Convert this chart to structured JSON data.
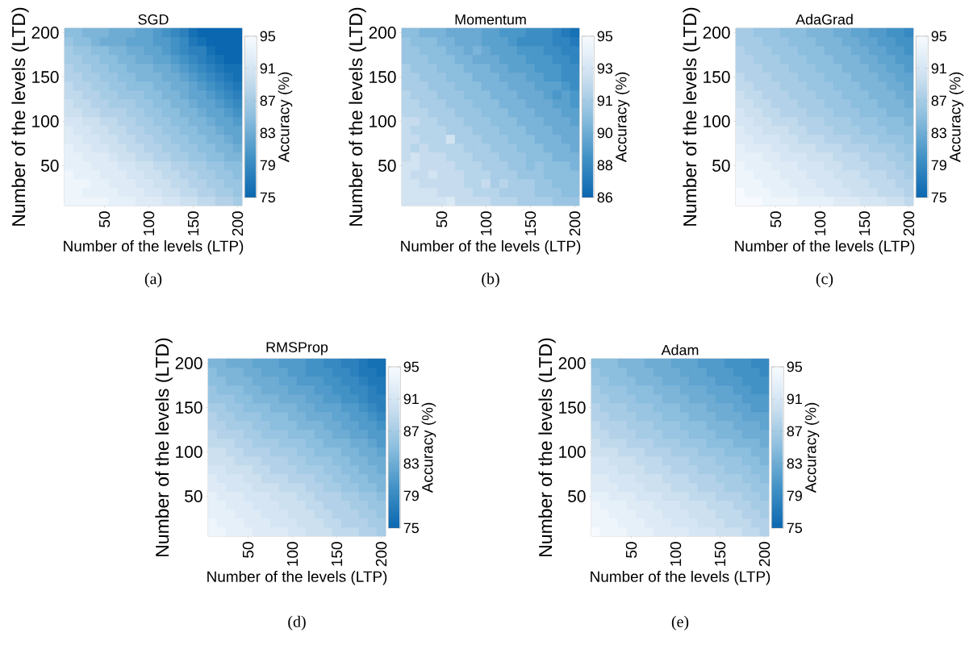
{
  "chart_data": [
    {
      "type": "heatmap",
      "title": "SGD",
      "xlabel": "Number of the levels (LTP)",
      "ylabel": "Number of the levels (LTD)",
      "clabel": "Accuracy (%)",
      "annotations": [
        "(a)"
      ],
      "x": [
        10,
        20,
        30,
        40,
        50,
        60,
        70,
        80,
        90,
        100,
        110,
        120,
        130,
        140,
        150,
        160,
        170,
        180,
        190,
        200
      ],
      "y": [
        200,
        190,
        180,
        170,
        160,
        150,
        140,
        130,
        120,
        110,
        100,
        90,
        80,
        70,
        60,
        50,
        40,
        30,
        20,
        10
      ],
      "xlim": [
        5,
        205
      ],
      "ylim": [
        5,
        205
      ],
      "xticks": [
        50,
        100,
        150,
        200
      ],
      "yticks": [
        50,
        100,
        150,
        200
      ],
      "clim": [
        75,
        95
      ],
      "cticks": [
        75,
        79,
        83,
        87,
        91,
        95
      ],
      "cells": [
        [
          85,
          85,
          84,
          84,
          84,
          83,
          83,
          83,
          82,
          82,
          81,
          80,
          79,
          78,
          76,
          75,
          75,
          75,
          75,
          75
        ],
        [
          86,
          85,
          85,
          84,
          83,
          83,
          83,
          82,
          82,
          82,
          81,
          81,
          80,
          79,
          77,
          76,
          75,
          75,
          75,
          75
        ],
        [
          87,
          86,
          86,
          85,
          85,
          84,
          84,
          83,
          83,
          82,
          82,
          81,
          80,
          79,
          78,
          78,
          76,
          75,
          75,
          75
        ],
        [
          87,
          87,
          86,
          86,
          85,
          85,
          84,
          84,
          83,
          83,
          82,
          82,
          81,
          80,
          79,
          78,
          77,
          76,
          75,
          75
        ],
        [
          88,
          87,
          87,
          86,
          86,
          85,
          85,
          84,
          84,
          84,
          83,
          83,
          82,
          81,
          80,
          79,
          78,
          77,
          76,
          76
        ],
        [
          88,
          88,
          87,
          87,
          86,
          86,
          85,
          85,
          84,
          84,
          84,
          83,
          83,
          82,
          81,
          80,
          79,
          78,
          77,
          76
        ],
        [
          89,
          88,
          88,
          87,
          87,
          86,
          86,
          85,
          85,
          85,
          84,
          84,
          83,
          83,
          82,
          81,
          80,
          79,
          78,
          77
        ],
        [
          89,
          89,
          88,
          88,
          87,
          87,
          86,
          86,
          86,
          85,
          85,
          84,
          84,
          83,
          82,
          82,
          81,
          80,
          79,
          78
        ],
        [
          90,
          89,
          89,
          88,
          88,
          87,
          87,
          87,
          86,
          86,
          85,
          85,
          84,
          84,
          83,
          82,
          82,
          81,
          80,
          79
        ],
        [
          90,
          90,
          89,
          89,
          88,
          88,
          88,
          87,
          87,
          86,
          86,
          85,
          85,
          84,
          84,
          83,
          82,
          82,
          81,
          80
        ],
        [
          91,
          91,
          90,
          90,
          89,
          89,
          88,
          88,
          87,
          87,
          86,
          86,
          85,
          85,
          84,
          84,
          83,
          82,
          82,
          81
        ],
        [
          92,
          91,
          91,
          90,
          90,
          89,
          89,
          88,
          88,
          87,
          87,
          86,
          86,
          85,
          85,
          84,
          84,
          83,
          82,
          82
        ],
        [
          92,
          92,
          91,
          91,
          90,
          90,
          89,
          89,
          88,
          88,
          87,
          87,
          86,
          86,
          85,
          85,
          84,
          84,
          83,
          82
        ],
        [
          93,
          92,
          92,
          91,
          91,
          90,
          90,
          89,
          89,
          88,
          88,
          87,
          87,
          86,
          86,
          85,
          85,
          84,
          84,
          83
        ],
        [
          93,
          93,
          92,
          92,
          92,
          91,
          90,
          90,
          89,
          89,
          88,
          88,
          87,
          87,
          86,
          86,
          85,
          85,
          84,
          84
        ],
        [
          93,
          93,
          93,
          92,
          92,
          92,
          91,
          91,
          90,
          90,
          89,
          89,
          88,
          88,
          87,
          87,
          86,
          86,
          85,
          85
        ],
        [
          94,
          93,
          93,
          93,
          92,
          92,
          92,
          91,
          91,
          90,
          90,
          89,
          89,
          88,
          88,
          87,
          87,
          86,
          86,
          85
        ],
        [
          94,
          94,
          94,
          93,
          93,
          92,
          92,
          92,
          91,
          91,
          90,
          90,
          89,
          89,
          88,
          88,
          87,
          87,
          86,
          86
        ],
        [
          94,
          94,
          93,
          93,
          93,
          93,
          92,
          92,
          92,
          91,
          91,
          90,
          90,
          89,
          89,
          88,
          88,
          87,
          87,
          86
        ],
        [
          94,
          94,
          94,
          94,
          94,
          93,
          93,
          93,
          92,
          92,
          92,
          91,
          91,
          90,
          90,
          89,
          89,
          88,
          88,
          87
        ]
      ]
    },
    {
      "type": "heatmap",
      "title": "Momentum",
      "xlabel": "Number of the levels (LTP)",
      "ylabel": "Number of the levels (LTD)",
      "clabel": "Accuracy (%)",
      "annotations": [
        "(b)"
      ],
      "x": [
        10,
        20,
        30,
        40,
        50,
        60,
        70,
        80,
        90,
        100,
        110,
        120,
        130,
        140,
        150,
        160,
        170,
        180,
        190,
        200
      ],
      "y": [
        200,
        190,
        180,
        170,
        160,
        150,
        140,
        130,
        120,
        110,
        100,
        90,
        80,
        70,
        60,
        50,
        40,
        30,
        20,
        10
      ],
      "xlim": [
        5,
        205
      ],
      "ylim": [
        5,
        205
      ],
      "xticks": [
        50,
        100,
        150,
        200
      ],
      "yticks": [
        50,
        100,
        150,
        200
      ],
      "clim": [
        86,
        95
      ],
      "cticks": [
        86,
        {
          "value": 87.8,
          "label": "88"
        },
        {
          "value": 89.6,
          "label": "90"
        },
        {
          "value": 91.4,
          "label": "91"
        },
        {
          "value": 93.2,
          "label": "93"
        },
        95
      ],
      "cells": [
        [
          90.5,
          90.5,
          90,
          90,
          90,
          89.5,
          89.5,
          89.5,
          89.5,
          89,
          89,
          88.5,
          88.5,
          88.5,
          88,
          88,
          88,
          87.5,
          87,
          86.5
        ],
        [
          91,
          90.5,
          90.5,
          90.5,
          90,
          90,
          89.5,
          89.5,
          89.5,
          89,
          89,
          89,
          88.5,
          88,
          88,
          88,
          88,
          87.5,
          87.5,
          87
        ],
        [
          91,
          91,
          90.5,
          90.5,
          90.5,
          90,
          90,
          89.5,
          90,
          89.5,
          89,
          89,
          89,
          88.5,
          88.5,
          88.5,
          88,
          88,
          87.5,
          87.5
        ],
        [
          91,
          91,
          91,
          90.5,
          90.5,
          90.5,
          90,
          90,
          89.5,
          89.5,
          89.5,
          89,
          89,
          89,
          88.5,
          88.5,
          88.5,
          88,
          88,
          87.5
        ],
        [
          91.5,
          91,
          91,
          91,
          90.5,
          90.5,
          90.5,
          90,
          90,
          90,
          89.5,
          89.5,
          89,
          89,
          89,
          88.5,
          88.5,
          88.5,
          88,
          88
        ],
        [
          91.5,
          91.5,
          91,
          91,
          91,
          90.5,
          90.5,
          90.5,
          90,
          90,
          90,
          89.5,
          89.5,
          89.5,
          89,
          89,
          88.5,
          88.5,
          88,
          88
        ],
        [
          91.5,
          91.5,
          91.5,
          91,
          91,
          91,
          90.5,
          90.5,
          90.5,
          90,
          90,
          90,
          89.5,
          89.5,
          89.5,
          89,
          89,
          89,
          88.5,
          88
        ],
        [
          92,
          91.5,
          91.5,
          91.5,
          91,
          91,
          91,
          90.5,
          90.5,
          90.5,
          90,
          90,
          90,
          89.5,
          89.5,
          89.5,
          89,
          88.5,
          89,
          88.5
        ],
        [
          92,
          92,
          91.5,
          91.5,
          91.5,
          91,
          91,
          91,
          90.5,
          90.5,
          90.5,
          90,
          90,
          90,
          89.5,
          89.5,
          89.5,
          89,
          89,
          88.5
        ],
        [
          92,
          92,
          92,
          91.5,
          91.5,
          91.5,
          91,
          91,
          91,
          90.5,
          90.5,
          90.5,
          90,
          90,
          90,
          89.5,
          89.5,
          89.5,
          89,
          89
        ],
        [
          92.5,
          92.5,
          92,
          92,
          91.5,
          91.5,
          91.5,
          91,
          91,
          91,
          90.5,
          90.5,
          90.5,
          90,
          90,
          90,
          89.5,
          89.5,
          89.5,
          89
        ],
        [
          92.5,
          92,
          92,
          92,
          92,
          91.5,
          91.5,
          91.5,
          91,
          91,
          91,
          90.5,
          90.5,
          90.5,
          90,
          90,
          90,
          89.5,
          89.5,
          89.5
        ],
        [
          92.5,
          92.5,
          92,
          92,
          92,
          93,
          91.5,
          91.5,
          91.5,
          91,
          91,
          91,
          90.5,
          90.5,
          90.5,
          90,
          90,
          90,
          89.5,
          89.5
        ],
        [
          92.5,
          92,
          92.5,
          92,
          92,
          92,
          92,
          91.5,
          91.5,
          91.5,
          91,
          91,
          91,
          90.5,
          90.5,
          90.5,
          90,
          90,
          90,
          89.5
        ],
        [
          92.5,
          93,
          92.5,
          92.5,
          92.5,
          92,
          92,
          92,
          91.5,
          91.5,
          91.5,
          91,
          91,
          91,
          90.5,
          90.5,
          90.5,
          90,
          90,
          90
        ],
        [
          93,
          93,
          92.5,
          92.5,
          92.5,
          92.5,
          92,
          92,
          92,
          91.5,
          91.5,
          91.5,
          91,
          91,
          90.5,
          91,
          90.5,
          90.5,
          90.5,
          90
        ],
        [
          93,
          92.5,
          92.5,
          93,
          92.5,
          92.5,
          92.5,
          92,
          92,
          92,
          91.5,
          91.5,
          91.5,
          91,
          91,
          91,
          90.5,
          90.5,
          90.5,
          90.5
        ],
        [
          93,
          93,
          92.5,
          92.5,
          92.5,
          92.5,
          92.5,
          92,
          92,
          92.5,
          91.5,
          92,
          91.5,
          91.5,
          91.5,
          91,
          91,
          90.5,
          90.5,
          90.5
        ],
        [
          93,
          93,
          93,
          93,
          92.5,
          92.5,
          92.5,
          92.5,
          92,
          92,
          92,
          91.5,
          91.5,
          91.5,
          91.5,
          91,
          91,
          91,
          90.5,
          90.5
        ],
        [
          93,
          93,
          93,
          93,
          93,
          93.5,
          92.5,
          92.5,
          92.5,
          92.5,
          92,
          92,
          92,
          91.5,
          91.5,
          91.5,
          91.5,
          91,
          91,
          91
        ]
      ]
    },
    {
      "type": "heatmap",
      "title": "AdaGrad",
      "xlabel": "Number of the levels (LTP)",
      "ylabel": "Number of the levels (LTD)",
      "clabel": "Accuracy (%)",
      "annotations": [
        "(c)"
      ],
      "x": [
        10,
        20,
        30,
        40,
        50,
        60,
        70,
        80,
        90,
        100,
        110,
        120,
        130,
        140,
        150,
        160,
        170,
        180,
        190,
        200
      ],
      "y": [
        200,
        190,
        180,
        170,
        160,
        150,
        140,
        130,
        120,
        110,
        100,
        90,
        80,
        70,
        60,
        50,
        40,
        30,
        20,
        10
      ],
      "xlim": [
        5,
        205
      ],
      "ylim": [
        5,
        205
      ],
      "xticks": [
        50,
        100,
        150,
        200
      ],
      "yticks": [
        50,
        100,
        150,
        200
      ],
      "clim": [
        75,
        95
      ],
      "cticks": [
        75,
        79,
        83,
        87,
        91,
        95
      ],
      "cells": [
        [
          87,
          87,
          86,
          86,
          86,
          85,
          85,
          85,
          84,
          84,
          84,
          83,
          83,
          82,
          82,
          81,
          81,
          80,
          80,
          79
        ],
        [
          87,
          87,
          87,
          86,
          86,
          86,
          85,
          85,
          85,
          84,
          84,
          84,
          83,
          83,
          82,
          82,
          81,
          81,
          80,
          80
        ],
        [
          88,
          87,
          87,
          87,
          86,
          86,
          86,
          85,
          85,
          85,
          84,
          84,
          84,
          83,
          83,
          82,
          82,
          81,
          81,
          80
        ],
        [
          88,
          88,
          87,
          87,
          87,
          86,
          86,
          86,
          85,
          85,
          85,
          84,
          84,
          84,
          83,
          83,
          82,
          82,
          81,
          81
        ],
        [
          88,
          88,
          88,
          87,
          87,
          87,
          86,
          86,
          86,
          85,
          85,
          85,
          84,
          84,
          84,
          83,
          83,
          82,
          82,
          81
        ],
        [
          89,
          88,
          88,
          88,
          87,
          87,
          87,
          86,
          86,
          86,
          85,
          85,
          85,
          84,
          84,
          84,
          83,
          83,
          82,
          82
        ],
        [
          89,
          89,
          88,
          88,
          88,
          87,
          87,
          87,
          86,
          86,
          86,
          85,
          85,
          85,
          84,
          84,
          84,
          83,
          83,
          82
        ],
        [
          90,
          89,
          89,
          88,
          88,
          88,
          87,
          87,
          87,
          86,
          86,
          86,
          85,
          85,
          85,
          84,
          84,
          84,
          83,
          83
        ],
        [
          90,
          90,
          89,
          89,
          88,
          88,
          88,
          87,
          87,
          87,
          86,
          86,
          86,
          85,
          85,
          85,
          84,
          84,
          84,
          83
        ],
        [
          91,
          90,
          90,
          89,
          89,
          88,
          88,
          88,
          87,
          87,
          87,
          86,
          86,
          86,
          85,
          85,
          85,
          84,
          84,
          84
        ],
        [
          91,
          91,
          90,
          90,
          89,
          89,
          89,
          88,
          88,
          88,
          87,
          87,
          87,
          86,
          86,
          86,
          85,
          85,
          85,
          84
        ],
        [
          92,
          91,
          91,
          90,
          90,
          90,
          89,
          89,
          88,
          88,
          88,
          87,
          87,
          87,
          86,
          86,
          86,
          85,
          85,
          85
        ],
        [
          92,
          92,
          91,
          91,
          91,
          90,
          90,
          89,
          89,
          89,
          88,
          88,
          88,
          87,
          87,
          87,
          86,
          86,
          86,
          85
        ],
        [
          93,
          92,
          92,
          92,
          91,
          91,
          90,
          90,
          90,
          89,
          89,
          89,
          88,
          88,
          88,
          87,
          87,
          87,
          86,
          86
        ],
        [
          93,
          93,
          93,
          92,
          92,
          91,
          91,
          91,
          90,
          90,
          90,
          89,
          89,
          89,
          88,
          88,
          88,
          87,
          87,
          86
        ],
        [
          94,
          93,
          93,
          93,
          92,
          92,
          92,
          91,
          91,
          91,
          90,
          90,
          89,
          89,
          89,
          88,
          88,
          88,
          87,
          87
        ],
        [
          94,
          94,
          93,
          93,
          93,
          92,
          92,
          92,
          91,
          91,
          91,
          90,
          90,
          90,
          89,
          89,
          89,
          88,
          88,
          87
        ],
        [
          94,
          94,
          94,
          93,
          93,
          93,
          92,
          92,
          92,
          91,
          91,
          91,
          90,
          90,
          90,
          89,
          89,
          89,
          88,
          88
        ],
        [
          95,
          94,
          94,
          94,
          93,
          93,
          93,
          92,
          92,
          92,
          91,
          91,
          91,
          90,
          90,
          90,
          89,
          89,
          89,
          88
        ],
        [
          95,
          95,
          95,
          94,
          94,
          94,
          94,
          93,
          93,
          93,
          93,
          92,
          92,
          92,
          91,
          91,
          91,
          90,
          90,
          89
        ]
      ]
    },
    {
      "type": "heatmap",
      "title": "RMSProp",
      "xlabel": "Number of the levels (LTP)",
      "ylabel": "Number of the levels (LTD)",
      "clabel": "Accuracy (%)",
      "annotations": [
        "(d)"
      ],
      "x": [
        10,
        20,
        30,
        40,
        50,
        60,
        70,
        80,
        90,
        100,
        110,
        120,
        130,
        140,
        150,
        160,
        170,
        180,
        190,
        200
      ],
      "y": [
        200,
        190,
        180,
        170,
        160,
        150,
        140,
        130,
        120,
        110,
        100,
        90,
        80,
        70,
        60,
        50,
        40,
        30,
        20,
        10
      ],
      "xlim": [
        5,
        205
      ],
      "ylim": [
        5,
        205
      ],
      "xticks": [
        50,
        100,
        150,
        200
      ],
      "yticks": [
        50,
        100,
        150,
        200
      ],
      "clim": [
        75,
        95
      ],
      "cticks": [
        75,
        79,
        83,
        87,
        91,
        95
      ],
      "cells": [
        [
          84,
          84,
          83,
          83,
          83,
          82,
          82,
          82,
          81,
          81,
          81,
          80,
          80,
          79,
          79,
          78,
          78,
          77,
          76,
          76
        ],
        [
          85,
          84,
          84,
          84,
          83,
          83,
          82,
          82,
          82,
          81,
          81,
          80,
          80,
          80,
          79,
          79,
          78,
          77,
          77,
          76
        ],
        [
          85,
          85,
          84,
          84,
          84,
          83,
          83,
          83,
          82,
          82,
          81,
          81,
          81,
          80,
          80,
          79,
          79,
          78,
          77,
          77
        ],
        [
          86,
          85,
          85,
          85,
          84,
          84,
          83,
          83,
          83,
          82,
          82,
          82,
          81,
          81,
          80,
          80,
          79,
          79,
          78,
          77
        ],
        [
          86,
          86,
          86,
          85,
          85,
          84,
          84,
          84,
          83,
          83,
          83,
          82,
          82,
          81,
          81,
          80,
          80,
          79,
          78,
          78
        ],
        [
          87,
          87,
          86,
          86,
          85,
          85,
          85,
          84,
          84,
          84,
          83,
          83,
          82,
          82,
          82,
          81,
          81,
          80,
          79,
          78
        ],
        [
          88,
          87,
          87,
          86,
          86,
          86,
          85,
          85,
          85,
          84,
          84,
          83,
          83,
          83,
          82,
          82,
          81,
          81,
          80,
          79
        ],
        [
          88,
          88,
          87,
          87,
          87,
          86,
          86,
          85,
          85,
          85,
          84,
          84,
          84,
          83,
          83,
          82,
          82,
          81,
          81,
          80
        ],
        [
          89,
          88,
          88,
          88,
          87,
          87,
          86,
          86,
          86,
          85,
          85,
          85,
          84,
          84,
          83,
          83,
          82,
          82,
          81,
          81
        ],
        [
          89,
          89,
          89,
          88,
          88,
          87,
          87,
          87,
          86,
          86,
          86,
          85,
          85,
          84,
          84,
          84,
          83,
          83,
          82,
          81
        ],
        [
          90,
          90,
          89,
          89,
          88,
          88,
          88,
          87,
          87,
          87,
          86,
          86,
          85,
          85,
          85,
          84,
          84,
          83,
          83,
          82
        ],
        [
          90,
          90,
          90,
          89,
          89,
          89,
          88,
          88,
          88,
          87,
          87,
          86,
          86,
          86,
          85,
          85,
          84,
          84,
          83,
          83
        ],
        [
          91,
          91,
          90,
          90,
          90,
          89,
          89,
          88,
          88,
          88,
          87,
          87,
          87,
          86,
          86,
          85,
          85,
          84,
          84,
          83
        ],
        [
          92,
          91,
          91,
          91,
          90,
          90,
          89,
          89,
          89,
          88,
          88,
          88,
          87,
          87,
          86,
          86,
          85,
          85,
          84,
          84
        ],
        [
          92,
          92,
          91,
          91,
          91,
          90,
          90,
          90,
          89,
          89,
          89,
          88,
          88,
          87,
          87,
          86,
          86,
          85,
          85,
          84
        ],
        [
          93,
          92,
          92,
          92,
          91,
          91,
          91,
          90,
          90,
          90,
          89,
          89,
          88,
          88,
          88,
          87,
          87,
          86,
          86,
          85
        ],
        [
          93,
          93,
          92,
          92,
          92,
          91,
          91,
          91,
          90,
          90,
          90,
          89,
          89,
          88,
          88,
          88,
          87,
          87,
          86,
          86
        ],
        [
          93,
          93,
          93,
          92,
          92,
          92,
          91,
          91,
          91,
          90,
          90,
          90,
          89,
          89,
          88,
          88,
          88,
          87,
          87,
          86
        ],
        [
          94,
          93,
          93,
          93,
          92,
          92,
          92,
          91,
          91,
          91,
          90,
          90,
          90,
          89,
          89,
          88,
          88,
          88,
          87,
          87
        ],
        [
          94,
          94,
          93,
          93,
          93,
          92,
          92,
          92,
          92,
          91,
          91,
          90,
          90,
          90,
          89,
          89,
          89,
          88,
          88,
          87
        ]
      ]
    },
    {
      "type": "heatmap",
      "title": "Adam",
      "xlabel": "Number of the levels (LTP)",
      "ylabel": "Number of the levels (LTD)",
      "clabel": "Accuracy (%)",
      "annotations": [
        "(e)"
      ],
      "x": [
        10,
        20,
        30,
        40,
        50,
        60,
        70,
        80,
        90,
        100,
        110,
        120,
        130,
        140,
        150,
        160,
        170,
        180,
        190,
        200
      ],
      "y": [
        200,
        190,
        180,
        170,
        160,
        150,
        140,
        130,
        120,
        110,
        100,
        90,
        80,
        70,
        60,
        50,
        40,
        30,
        20,
        10
      ],
      "xlim": [
        5,
        205
      ],
      "ylim": [
        5,
        205
      ],
      "xticks": [
        50,
        100,
        150,
        200
      ],
      "yticks": [
        50,
        100,
        150,
        200
      ],
      "clim": [
        75,
        95
      ],
      "cticks": [
        75,
        79,
        83,
        87,
        91,
        95
      ],
      "cells": [
        [
          85,
          85,
          85,
          84,
          84,
          84,
          83,
          83,
          83,
          82,
          82,
          82,
          81,
          81,
          81,
          80,
          80,
          80,
          79,
          79
        ],
        [
          86,
          85,
          85,
          85,
          84,
          84,
          84,
          83,
          83,
          83,
          82,
          82,
          82,
          81,
          81,
          81,
          80,
          80,
          80,
          79
        ],
        [
          86,
          86,
          85,
          85,
          85,
          84,
          84,
          84,
          83,
          83,
          83,
          82,
          82,
          82,
          81,
          81,
          81,
          80,
          80,
          80
        ],
        [
          87,
          86,
          86,
          86,
          85,
          85,
          85,
          84,
          84,
          84,
          83,
          83,
          83,
          82,
          82,
          82,
          81,
          81,
          80,
          80
        ],
        [
          87,
          87,
          86,
          86,
          86,
          85,
          85,
          85,
          84,
          84,
          84,
          83,
          83,
          83,
          82,
          82,
          82,
          81,
          81,
          81
        ],
        [
          88,
          87,
          87,
          87,
          86,
          86,
          86,
          85,
          85,
          85,
          84,
          84,
          84,
          83,
          83,
          83,
          82,
          82,
          81,
          81
        ],
        [
          88,
          88,
          87,
          87,
          87,
          86,
          86,
          86,
          85,
          85,
          85,
          84,
          84,
          84,
          83,
          83,
          83,
          82,
          82,
          82
        ],
        [
          89,
          88,
          88,
          88,
          87,
          87,
          87,
          86,
          86,
          86,
          85,
          85,
          85,
          84,
          84,
          84,
          83,
          83,
          83,
          82
        ],
        [
          89,
          89,
          88,
          88,
          88,
          87,
          87,
          87,
          86,
          86,
          86,
          85,
          85,
          85,
          84,
          84,
          84,
          83,
          83,
          83
        ],
        [
          90,
          89,
          89,
          89,
          88,
          88,
          88,
          87,
          87,
          87,
          86,
          86,
          86,
          85,
          85,
          85,
          84,
          84,
          84,
          83
        ],
        [
          90,
          90,
          90,
          89,
          89,
          89,
          88,
          88,
          88,
          87,
          87,
          87,
          86,
          86,
          86,
          85,
          85,
          85,
          84,
          84
        ],
        [
          91,
          91,
          90,
          90,
          90,
          89,
          89,
          89,
          88,
          88,
          88,
          87,
          87,
          87,
          86,
          86,
          86,
          85,
          85,
          84
        ],
        [
          91,
          91,
          91,
          90,
          90,
          90,
          89,
          89,
          89,
          88,
          88,
          88,
          87,
          87,
          87,
          86,
          86,
          86,
          85,
          85
        ],
        [
          92,
          92,
          91,
          91,
          91,
          90,
          90,
          90,
          89,
          89,
          89,
          88,
          88,
          88,
          87,
          87,
          87,
          86,
          86,
          85
        ],
        [
          92,
          92,
          92,
          91,
          91,
          91,
          90,
          90,
          90,
          89,
          89,
          89,
          88,
          88,
          88,
          87,
          87,
          87,
          86,
          86
        ],
        [
          93,
          93,
          92,
          92,
          92,
          91,
          91,
          91,
          90,
          90,
          90,
          89,
          89,
          89,
          88,
          88,
          88,
          87,
          87,
          86
        ],
        [
          94,
          93,
          93,
          93,
          92,
          92,
          92,
          91,
          91,
          91,
          90,
          90,
          90,
          89,
          89,
          89,
          88,
          88,
          87,
          87
        ],
        [
          94,
          94,
          93,
          93,
          93,
          92,
          92,
          92,
          91,
          91,
          91,
          90,
          90,
          90,
          89,
          89,
          89,
          88,
          88,
          87
        ],
        [
          94,
          94,
          94,
          93,
          93,
          93,
          92,
          92,
          92,
          91,
          91,
          91,
          90,
          90,
          90,
          89,
          89,
          89,
          88,
          88
        ],
        [
          95,
          94,
          94,
          94,
          93,
          93,
          93,
          92,
          92,
          92,
          92,
          91,
          91,
          91,
          90,
          90,
          90,
          89,
          89,
          88
        ]
      ]
    }
  ]
}
